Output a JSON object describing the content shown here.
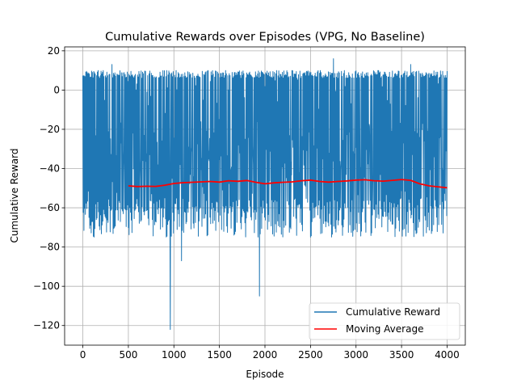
{
  "chart_data": {
    "type": "line",
    "title": "Cumulative Rewards over Episodes (VPG, No Baseline)",
    "xlabel": "Episode",
    "ylabel": "Cumulative Reward",
    "xlim": [
      -200,
      4200
    ],
    "ylim": [
      -130,
      22
    ],
    "xticks": [
      0,
      500,
      1000,
      1500,
      2000,
      2500,
      3000,
      3500,
      4000
    ],
    "yticks": [
      -120,
      -100,
      -80,
      -60,
      -40,
      -20,
      0,
      20
    ],
    "grid": true,
    "legend_location": "lower-right",
    "series": [
      {
        "name": "Cumulative Reward",
        "color": "#1f77b4",
        "style": "dense oscillating per-episode reward, mostly between -75 and 10",
        "episodes": 4000,
        "typical_low": -75,
        "typical_high": 10,
        "notable_points": [
          {
            "x": 320,
            "y": 13
          },
          {
            "x": 960,
            "y": -122
          },
          {
            "x": 1085,
            "y": -87
          },
          {
            "x": 1940,
            "y": -105
          },
          {
            "x": 2750,
            "y": 16
          },
          {
            "x": 3600,
            "y": 13
          }
        ]
      },
      {
        "name": "Moving Average",
        "color": "#ff0000",
        "x": [
          500,
          600,
          700,
          800,
          900,
          1000,
          1100,
          1200,
          1300,
          1400,
          1500,
          1600,
          1700,
          1800,
          1900,
          2000,
          2100,
          2200,
          2300,
          2400,
          2500,
          2600,
          2700,
          2800,
          2900,
          3000,
          3100,
          3200,
          3300,
          3400,
          3500,
          3600,
          3700,
          3800,
          3900,
          4000
        ],
        "values": [
          -48.8,
          -49.2,
          -49.0,
          -49.1,
          -48.5,
          -47.6,
          -47.2,
          -47.0,
          -46.8,
          -46.6,
          -46.9,
          -46.2,
          -46.5,
          -46.1,
          -47.0,
          -47.8,
          -47.3,
          -47.0,
          -46.8,
          -46.2,
          -45.9,
          -46.6,
          -46.9,
          -46.6,
          -46.3,
          -45.9,
          -45.7,
          -46.2,
          -46.4,
          -46.0,
          -45.6,
          -46.0,
          -47.8,
          -48.8,
          -49.3,
          -49.8
        ]
      }
    ]
  }
}
